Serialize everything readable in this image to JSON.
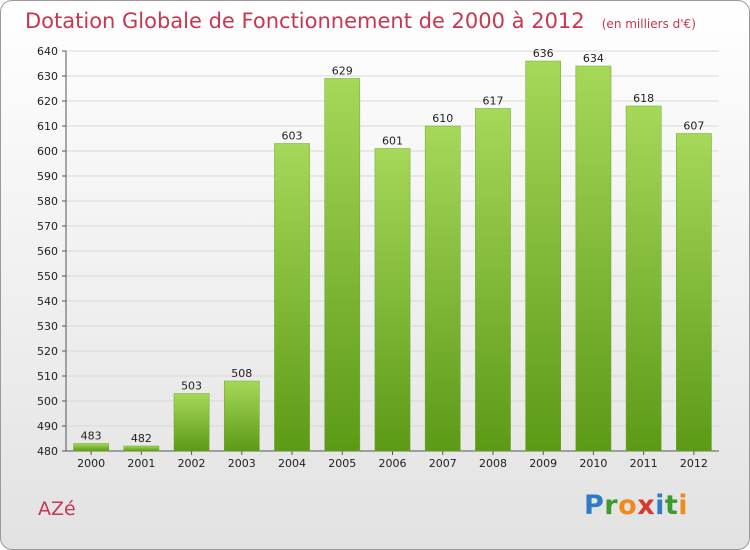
{
  "chart_data": {
    "type": "bar",
    "title": "Dotation Globale de Fonctionnement de 2000 à 2012",
    "subtitle": "(en milliers d'€)",
    "xlabel": "",
    "ylabel": "",
    "categories": [
      "2000",
      "2001",
      "2002",
      "2003",
      "2004",
      "2005",
      "2006",
      "2007",
      "2008",
      "2009",
      "2010",
      "2011",
      "2012"
    ],
    "values": [
      483,
      482,
      503,
      508,
      603,
      629,
      601,
      610,
      617,
      636,
      634,
      618,
      607
    ],
    "ylim": [
      480,
      640
    ],
    "yticks": [
      480,
      490,
      500,
      510,
      520,
      530,
      540,
      550,
      560,
      570,
      580,
      590,
      600,
      610,
      620,
      630,
      640
    ],
    "grid": true,
    "legend": "none",
    "bar_color": "#7cbf2e",
    "bar_color_light": "#a6d85a",
    "bar_color_dark": "#5c9a16"
  },
  "footer": {
    "commune": "AZé",
    "logo_letters": [
      "P",
      "r",
      "o",
      "x",
      "i",
      "t",
      "i"
    ],
    "logo_colors": [
      "#2e7cc4",
      "#3f9a2e",
      "#f08a1c",
      "#d63a2c",
      "#2e7cc4",
      "#3f9a2e",
      "#f08a1c"
    ]
  }
}
